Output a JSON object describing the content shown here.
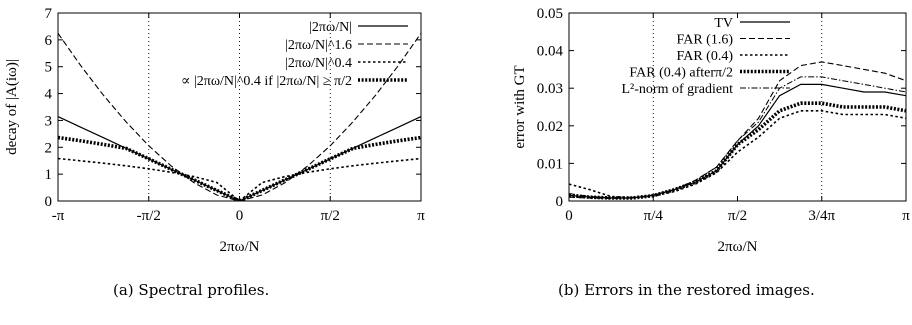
{
  "chart_data": [
    {
      "type": "line",
      "xlabel": "2πω/N",
      "ylabel": "decay of |A(iω)|",
      "xlim": [
        -3.14159,
        3.14159
      ],
      "ylim": [
        0,
        7
      ],
      "xticks": [
        "-π",
        "-π/2",
        "0",
        "π/2",
        "π"
      ],
      "yticks": [
        "0",
        "1",
        "2",
        "3",
        "4",
        "5",
        "6",
        "7"
      ],
      "grid": "vertical dotted at -π/2, 0, π/2",
      "legend_position": "top-right",
      "x": [
        -3.14159,
        -2.74889,
        -2.35619,
        -1.9635,
        -1.5708,
        -1.1781,
        -0.7854,
        -0.3927,
        0,
        0.3927,
        0.7854,
        1.1781,
        1.5708,
        1.9635,
        2.35619,
        2.74889,
        3.14159
      ],
      "series": [
        {
          "name": "|2πω/N|",
          "style": "solid",
          "values": [
            3.142,
            2.749,
            2.356,
            1.963,
            1.571,
            1.178,
            0.785,
            0.393,
            0,
            0.393,
            0.785,
            1.178,
            1.571,
            1.963,
            2.356,
            2.749,
            3.142
          ]
        },
        {
          "name": "|2πω/N|^1.6",
          "style": "dashed",
          "values": [
            6.245,
            5.042,
            3.94,
            2.946,
            2.059,
            1.3,
            0.679,
            0.224,
            0,
            0.224,
            0.679,
            1.3,
            2.059,
            2.946,
            3.94,
            5.042,
            6.245
          ]
        },
        {
          "name": "|2πω/N|^0.4",
          "style": "dotted",
          "values": [
            1.581,
            1.498,
            1.409,
            1.31,
            1.198,
            1.068,
            0.908,
            0.688,
            0,
            0.688,
            0.908,
            1.068,
            1.198,
            1.31,
            1.409,
            1.498,
            1.581
          ]
        },
        {
          "name": "∝ |2πω/N|^0.4 if |2πω/N| ≥ π/2",
          "style": "thick-dotted",
          "values": [
            2.365,
            2.241,
            2.108,
            1.96,
            1.571,
            1.178,
            0.785,
            0.393,
            0,
            0.393,
            0.785,
            1.178,
            1.571,
            1.96,
            2.108,
            2.241,
            2.365
          ]
        }
      ]
    },
    {
      "type": "line",
      "xlabel": "2πω/N",
      "ylabel": "error with GT",
      "xlim": [
        0,
        3.14159
      ],
      "ylim": [
        0,
        0.05
      ],
      "xticks": [
        "0",
        "π/4",
        "π/2",
        "3/4π",
        "π"
      ],
      "yticks": [
        "0",
        "0.01",
        "0.02",
        "0.03",
        "0.04",
        "0.05"
      ],
      "grid": "vertical dotted at π/4, 3/4π",
      "legend_position": "top-left",
      "x": [
        0,
        0.196,
        0.393,
        0.589,
        0.785,
        0.982,
        1.178,
        1.374,
        1.571,
        1.767,
        1.963,
        2.16,
        2.356,
        2.553,
        2.749,
        2.945,
        3.142
      ],
      "series": [
        {
          "name": "TV",
          "style": "solid",
          "values": [
            0.0015,
            0.001,
            0.0008,
            0.0008,
            0.0015,
            0.003,
            0.005,
            0.008,
            0.015,
            0.02,
            0.028,
            0.031,
            0.031,
            0.03,
            0.029,
            0.029,
            0.028
          ]
        },
        {
          "name": "FAR (1.6)",
          "style": "dashed",
          "values": [
            0.001,
            0.0008,
            0.0007,
            0.0008,
            0.0016,
            0.003,
            0.0055,
            0.009,
            0.016,
            0.022,
            0.032,
            0.036,
            0.037,
            0.036,
            0.035,
            0.034,
            0.032
          ]
        },
        {
          "name": "FAR (0.4)",
          "style": "dotted",
          "values": [
            0.0045,
            0.003,
            0.0012,
            0.0009,
            0.0013,
            0.0025,
            0.0045,
            0.0075,
            0.013,
            0.017,
            0.022,
            0.024,
            0.024,
            0.023,
            0.023,
            0.023,
            0.022
          ]
        },
        {
          "name": "FAR (0.4) afterπ/2",
          "style": "thick-dotted",
          "values": [
            0.0015,
            0.001,
            0.0008,
            0.0008,
            0.0014,
            0.003,
            0.005,
            0.008,
            0.015,
            0.019,
            0.024,
            0.026,
            0.026,
            0.025,
            0.025,
            0.025,
            0.024
          ]
        },
        {
          "name": "L²-norm of gradient",
          "style": "dash-dot",
          "values": [
            0.002,
            0.0012,
            0.0009,
            0.0008,
            0.0016,
            0.003,
            0.0055,
            0.009,
            0.016,
            0.021,
            0.03,
            0.033,
            0.033,
            0.032,
            0.031,
            0.03,
            0.029
          ]
        }
      ]
    }
  ],
  "captions": {
    "a": "(a) Spectral profiles.",
    "b": "(b) Errors in the restored images."
  }
}
